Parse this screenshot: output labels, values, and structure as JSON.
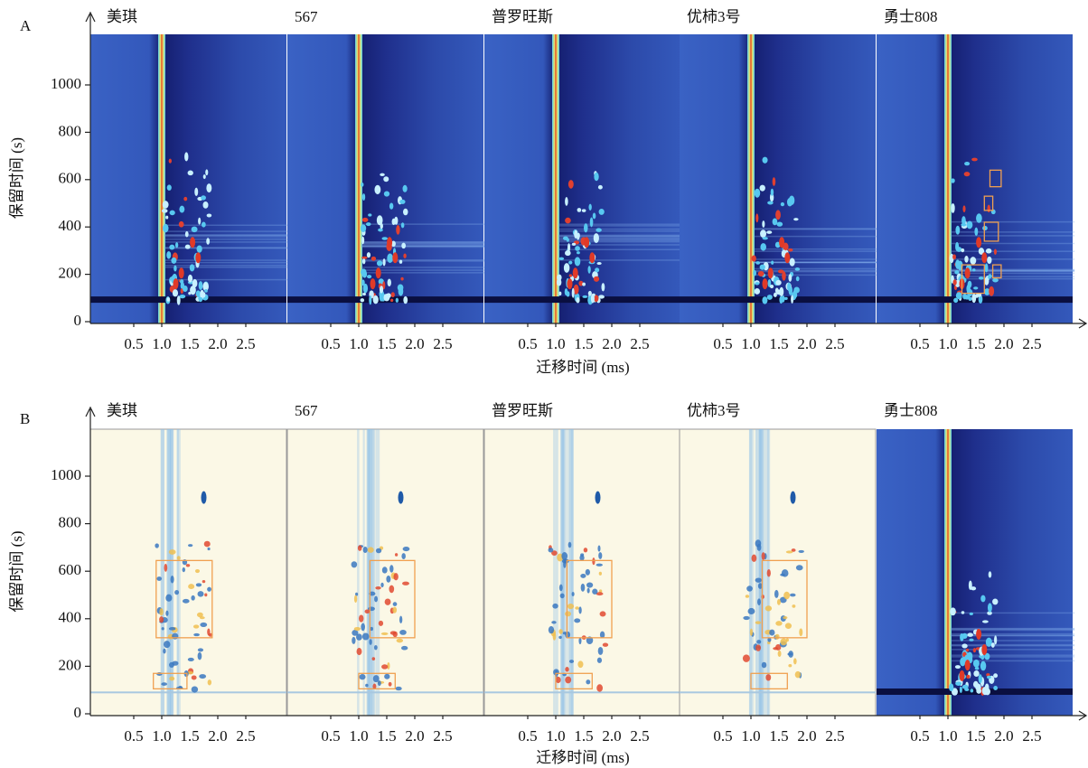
{
  "figure": {
    "panels": [
      {
        "label": "A",
        "samples": [
          "美琪",
          "567",
          "普罗旺斯",
          "优柿3号",
          "勇士808"
        ],
        "y_label": "保留时间 (s)",
        "x_label": "迁移时间 (ms)",
        "yticks": [
          0,
          200,
          400,
          600,
          800,
          1000
        ],
        "xticks": [
          0.5,
          {
            "value": 1,
            "label": "1.0"
          },
          1.5,
          {
            "value": 2,
            "label": "2.0"
          },
          2.5
        ]
      },
      {
        "label": "B",
        "samples": [
          "美琪",
          "567",
          "普罗旺斯",
          "优柿3号",
          "勇士808"
        ],
        "y_label": "保留时间 (s)",
        "x_label": "迁移时间 (ms)",
        "yticks": [
          0,
          200,
          400,
          600,
          800,
          1000
        ],
        "xticks": [
          0.5,
          {
            "value": 1,
            "label": "1.0"
          },
          1.5,
          {
            "value": 2,
            "label": "2.0"
          },
          2.5
        ]
      }
    ]
  }
}
